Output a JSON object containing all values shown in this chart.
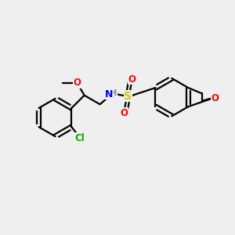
{
  "background_color": "#efefef",
  "bond_color": "#000000",
  "bond_width": 1.6,
  "atom_colors": {
    "O": "#ff0000",
    "N": "#0000ff",
    "S": "#cccc00",
    "Cl": "#00aa00",
    "H": "#888888",
    "C": "#000000"
  },
  "font_size_atom": 8.5,
  "fig_size": [
    3.0,
    3.0
  ],
  "dpi": 100
}
